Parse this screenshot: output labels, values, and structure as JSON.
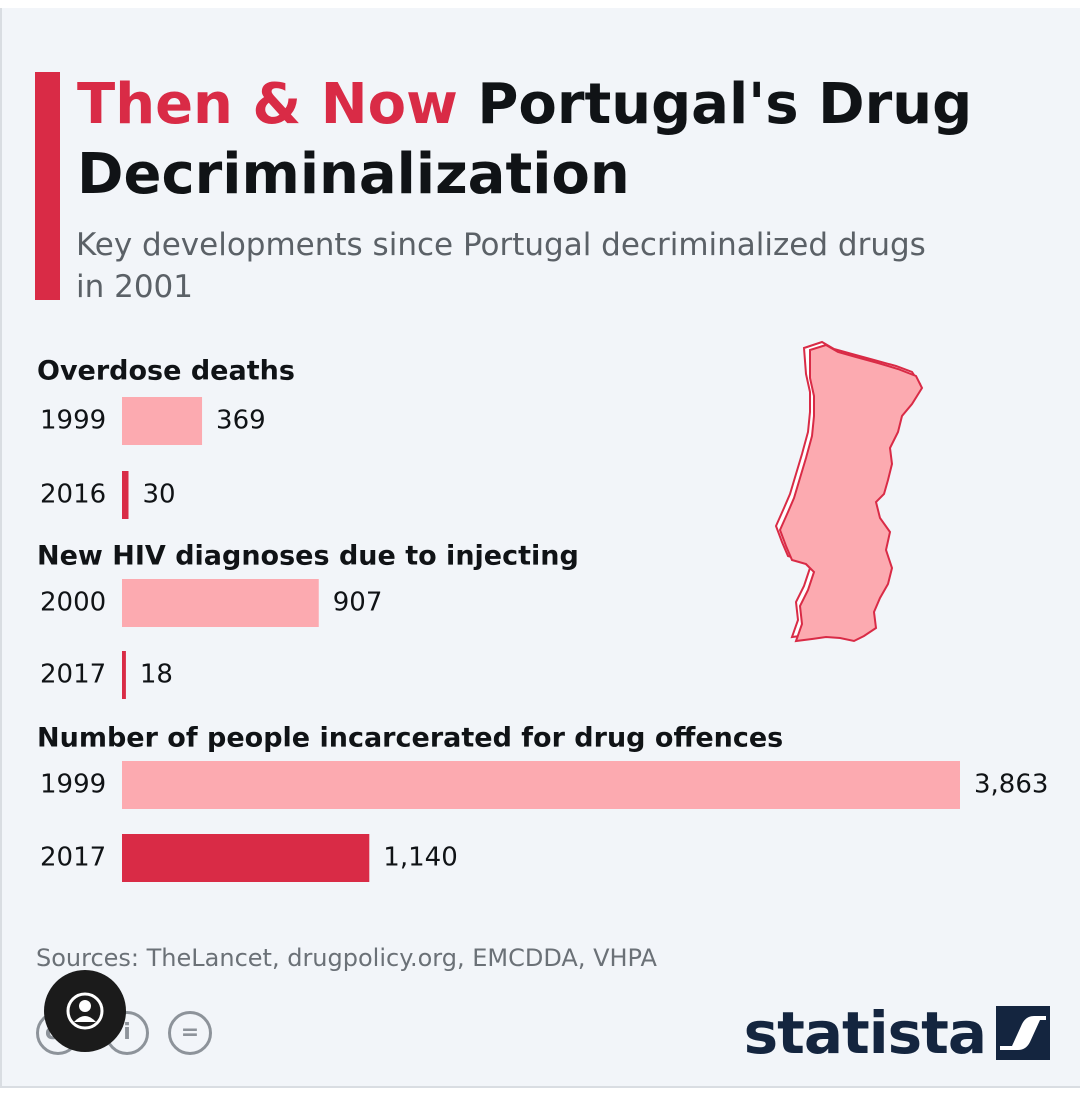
{
  "header": {
    "title_accent": "Then & Now",
    "title_rest": " Portugal's Drug Decriminalization",
    "subtitle": "Key developments since Portugal decriminalized drugs in 2001"
  },
  "colors": {
    "accent": "#d92b46",
    "bar_light": "#fcaab0",
    "map_fill": "#fcaab0",
    "text": "#101316",
    "brand": "#14253f"
  },
  "chart_data": {
    "type": "bar",
    "orientation": "horizontal",
    "groups": [
      {
        "title": "Overdose deaths",
        "rows": [
          {
            "year": "1999",
            "value": 369,
            "label": "369",
            "highlight": false
          },
          {
            "year": "2016",
            "value": 30,
            "label": "30",
            "highlight": true
          }
        ]
      },
      {
        "title": "New HIV diagnoses due to injecting",
        "rows": [
          {
            "year": "2000",
            "value": 907,
            "label": "907",
            "highlight": false
          },
          {
            "year": "2017",
            "value": 18,
            "label": "18",
            "highlight": true
          }
        ]
      },
      {
        "title": "Number of people incarcerated for drug offences",
        "rows": [
          {
            "year": "1999",
            "value": 3863,
            "label": "3,863",
            "highlight": false
          },
          {
            "year": "2017",
            "value": 1140,
            "label": "1,140",
            "highlight": true
          }
        ]
      }
    ]
  },
  "footer": {
    "sources": "Sources: TheLancet, drugpolicy.org, EMCDDA, VHPA",
    "license_icons": [
      "cc-icon",
      "by-icon",
      "nd-icon"
    ],
    "brand": "statista"
  }
}
